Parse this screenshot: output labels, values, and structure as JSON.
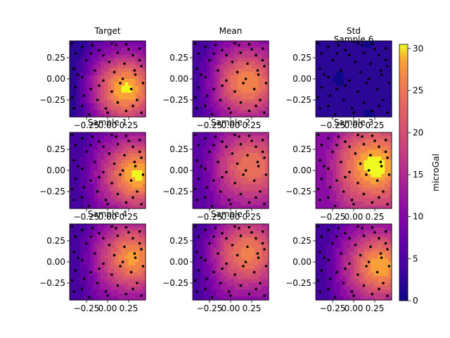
{
  "chart_data": {
    "type": "heatmap",
    "colormap": "plasma",
    "colorbar": {
      "label": "microGal",
      "range": [
        0,
        30.5
      ],
      "ticks": [
        0,
        5,
        10,
        15,
        20,
        25,
        30
      ],
      "tick_labels": [
        "0",
        "5",
        "10",
        "15",
        "20",
        "25",
        "30"
      ]
    },
    "shared_axes": {
      "xlim": [
        -0.45,
        0.45
      ],
      "ylim": [
        -0.45,
        0.45
      ],
      "x_ticks": [
        -0.25,
        0.0,
        0.25
      ],
      "x_tick_labels": [
        "−0.25",
        "0.00",
        "0.25"
      ],
      "y_ticks": [
        0.25,
        0.0,
        -0.25
      ],
      "y_tick_labels": [
        "0.25",
        "0.00",
        "−0.25"
      ]
    },
    "panels": [
      {
        "title": "Target",
        "field": {
          "kind": "gravity",
          "max": 30,
          "peak": [
            0.22,
            -0.12
          ],
          "min": 2
        }
      },
      {
        "title": "Mean",
        "field": {
          "kind": "gravity",
          "max": 27,
          "peak": [
            0.2,
            -0.05
          ],
          "min": 4
        }
      },
      {
        "title": "Std",
        "extra_title": "Sample 6",
        "field": {
          "kind": "flat",
          "max": 2,
          "min": 1
        }
      },
      {
        "title": "Sample 1",
        "field": {
          "kind": "gravity",
          "max": 30,
          "peak": [
            0.35,
            -0.05
          ],
          "min": 4
        }
      },
      {
        "title": "Sample 2",
        "field": {
          "kind": "gravity",
          "max": 25,
          "peak": [
            0.25,
            0.05
          ],
          "min": 6
        }
      },
      {
        "title": "Sample 3",
        "field": {
          "kind": "gravity",
          "max": 31,
          "peak": [
            0.25,
            0.05
          ],
          "min": 10
        }
      },
      {
        "title": "Sample 4",
        "field": {
          "kind": "gravity",
          "max": 28,
          "peak": [
            0.3,
            0.05
          ],
          "min": 4
        }
      },
      {
        "title": "Sample 5",
        "field": {
          "kind": "gravity",
          "max": 26,
          "peak": [
            0.2,
            0.1
          ],
          "min": 5
        }
      },
      {
        "title": "",
        "field": {
          "kind": "gravity",
          "max": 29,
          "peak": [
            0.32,
            -0.05
          ],
          "min": 4
        }
      }
    ],
    "sample_points": [
      [
        -0.42,
        0.42
      ],
      [
        -0.3,
        0.38
      ],
      [
        -0.18,
        0.4
      ],
      [
        0.05,
        0.42
      ],
      [
        0.22,
        0.41
      ],
      [
        0.38,
        0.36
      ],
      [
        -0.38,
        0.3
      ],
      [
        -0.1,
        0.34
      ],
      [
        0.12,
        0.31
      ],
      [
        0.3,
        0.28
      ],
      [
        -0.25,
        0.22
      ],
      [
        0.02,
        0.2
      ],
      [
        0.2,
        0.18
      ],
      [
        0.4,
        0.15
      ],
      [
        -0.4,
        0.12
      ],
      [
        -0.15,
        0.1
      ],
      [
        0.08,
        0.08
      ],
      [
        0.33,
        0.05
      ],
      [
        -0.3,
        0.02
      ],
      [
        -0.05,
        -0.02
      ],
      [
        0.18,
        0.0
      ],
      [
        0.42,
        -0.05
      ],
      [
        -0.38,
        -0.1
      ],
      [
        -0.2,
        -0.12
      ],
      [
        0.05,
        -0.15
      ],
      [
        0.28,
        -0.12
      ],
      [
        -0.42,
        -0.22
      ],
      [
        -0.12,
        -0.25
      ],
      [
        0.12,
        -0.28
      ],
      [
        0.35,
        -0.25
      ],
      [
        -0.3,
        -0.32
      ],
      [
        -0.02,
        -0.35
      ],
      [
        0.22,
        -0.38
      ],
      [
        0.4,
        -0.4
      ],
      [
        -0.22,
        -0.42
      ],
      [
        0.0,
        -0.4
      ],
      [
        -0.35,
        0.05
      ],
      [
        0.25,
        0.35
      ],
      [
        -0.05,
        0.28
      ],
      [
        0.15,
        -0.05
      ],
      [
        0.38,
        0.22
      ],
      [
        -0.2,
        0.3
      ],
      [
        0.1,
        0.4
      ],
      [
        -0.4,
        -0.35
      ],
      [
        0.3,
        -0.32
      ],
      [
        -0.1,
        -0.08
      ],
      [
        0.32,
        0.1
      ],
      [
        -0.28,
        -0.2
      ]
    ]
  }
}
